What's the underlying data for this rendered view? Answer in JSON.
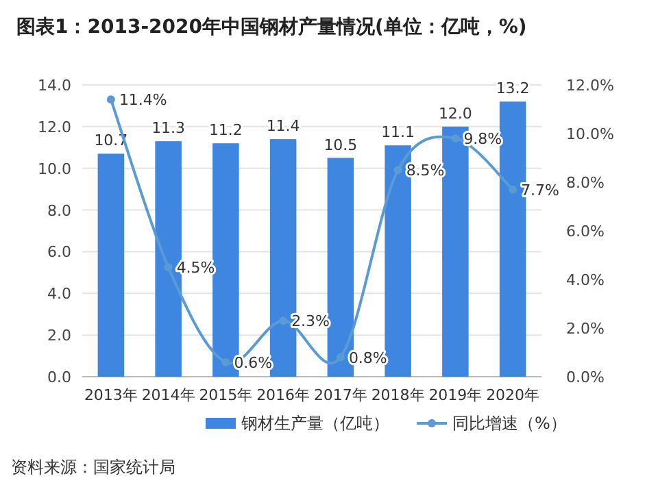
{
  "chart_data": {
    "type": "bar",
    "title": "图表1：2013-2020年中国钢材产量情况(单位：亿吨，%)",
    "categories": [
      "2013年",
      "2014年",
      "2015年",
      "2016年",
      "2017年",
      "2018年",
      "2019年",
      "2020年"
    ],
    "series": [
      {
        "name": "钢材生产量（亿吨）",
        "color": "#3f86e0",
        "values": [
          10.7,
          11.3,
          11.2,
          11.4,
          10.5,
          11.1,
          12.0,
          13.2
        ],
        "value_labels": [
          "10.7",
          "11.3",
          "11.2",
          "11.4",
          "10.5",
          "11.1",
          "12.0",
          "13.2"
        ]
      },
      {
        "name": "同比增速（%）",
        "type": "line",
        "axis": "y2",
        "marker": "circle",
        "color": "#5b9bd5",
        "values": [
          11.4,
          4.5,
          0.6,
          2.3,
          0.8,
          8.5,
          9.8,
          7.7
        ],
        "value_labels": [
          "11.4%",
          "4.5%",
          "0.6%",
          "2.3%",
          "0.8%",
          "8.5%",
          "9.8%",
          "7.7%"
        ]
      }
    ],
    "ylim": [
      0,
      14
    ],
    "yticks": [
      {
        "value": 0,
        "label": "0.0"
      },
      {
        "value": 2,
        "label": "2.0"
      },
      {
        "value": 4,
        "label": "4.0"
      },
      {
        "value": 6,
        "label": "6.0"
      },
      {
        "value": 8,
        "label": "8.0"
      },
      {
        "value": 10,
        "label": "10.0"
      },
      {
        "value": 12,
        "label": "12.0"
      },
      {
        "value": 14,
        "label": "14.0"
      }
    ],
    "y2lim": [
      0,
      12
    ],
    "y2ticks": [
      {
        "value": 0,
        "label": "0.0%"
      },
      {
        "value": 2,
        "label": "2.0%"
      },
      {
        "value": 4,
        "label": "4.0%"
      },
      {
        "value": 6,
        "label": "6.0%"
      },
      {
        "value": 8,
        "label": "8.0%"
      },
      {
        "value": 10,
        "label": "10.0%"
      },
      {
        "value": 12,
        "label": "12.0%"
      }
    ],
    "grid": "y",
    "legend": "bottom",
    "annotations": [
      "资料来源：国家统计局"
    ]
  }
}
